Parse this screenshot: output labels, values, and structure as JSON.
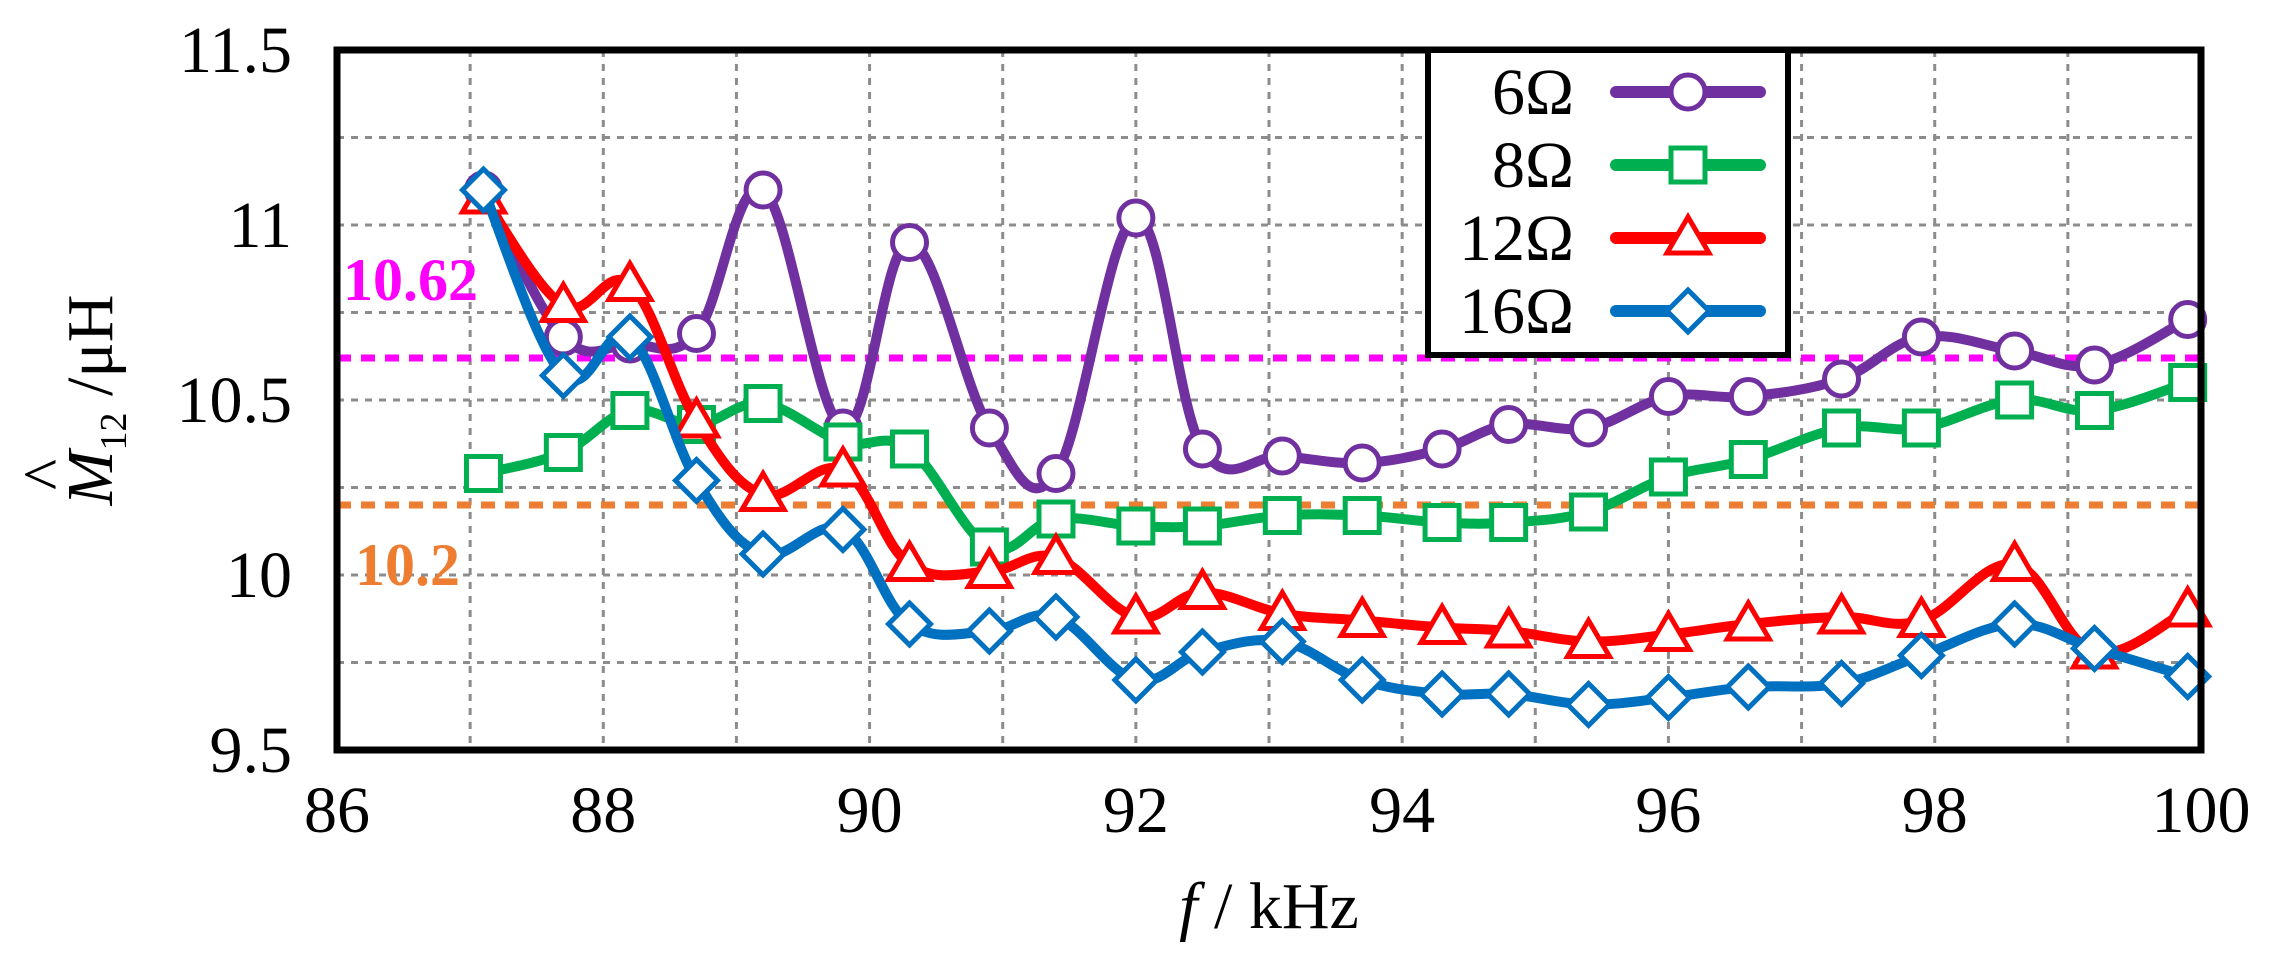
{
  "chart_data": {
    "type": "line",
    "title": "",
    "xlabel": {
      "italic": "f",
      "rest": " / kHz"
    },
    "ylabel": {
      "symbol": "M",
      "sub": "12",
      "unit": " /μH"
    },
    "xlim": [
      86,
      100
    ],
    "ylim": [
      9.5,
      11.5
    ],
    "xticks": [
      "86",
      "88",
      "90",
      "92",
      "94",
      "96",
      "98",
      "100"
    ],
    "yticks": [
      "9.5",
      "10",
      "10.5",
      "11",
      "11.5"
    ],
    "grid": true,
    "legend_position": "top-right",
    "x": [
      87.1,
      87.7,
      88.2,
      88.7,
      89.2,
      89.8,
      90.3,
      90.9,
      91.4,
      92.0,
      92.5,
      93.1,
      93.7,
      94.3,
      94.8,
      95.4,
      96.0,
      96.6,
      97.3,
      97.9,
      98.6,
      99.2,
      99.9
    ],
    "series": [
      {
        "name": "6Ω",
        "color": "#7030A0",
        "marker": "circle",
        "values": [
          11.1,
          10.68,
          10.66,
          10.69,
          11.1,
          10.42,
          10.95,
          10.42,
          10.29,
          11.02,
          10.36,
          10.34,
          10.32,
          10.36,
          10.43,
          10.42,
          10.51,
          10.51,
          10.56,
          10.68,
          10.64,
          10.6,
          10.73
        ]
      },
      {
        "name": "8Ω",
        "color": "#00B050",
        "marker": "square",
        "values": [
          10.29,
          10.35,
          10.47,
          10.43,
          10.49,
          10.38,
          10.36,
          10.08,
          10.16,
          10.14,
          10.14,
          10.17,
          10.17,
          10.15,
          10.15,
          10.18,
          10.28,
          10.33,
          10.42,
          10.42,
          10.5,
          10.47,
          10.55
        ]
      },
      {
        "name": "12Ω",
        "color": "#FF0000",
        "marker": "triangle",
        "values": [
          11.08,
          10.77,
          10.83,
          10.44,
          10.23,
          10.3,
          10.03,
          10.01,
          10.05,
          9.88,
          9.95,
          9.89,
          9.87,
          9.85,
          9.84,
          9.81,
          9.83,
          9.86,
          9.88,
          9.87,
          10.03,
          9.78,
          9.9
        ]
      },
      {
        "name": "16Ω",
        "color": "#0070C0",
        "marker": "diamond",
        "values": [
          11.1,
          10.57,
          10.68,
          10.27,
          10.06,
          10.13,
          9.86,
          9.84,
          9.88,
          9.7,
          9.78,
          9.81,
          9.7,
          9.66,
          9.66,
          9.63,
          9.65,
          9.68,
          9.69,
          9.77,
          9.86,
          9.79,
          9.71
        ]
      }
    ],
    "reference_lines": [
      {
        "value": 10.62,
        "label": "10.62",
        "color": "#FF00FF"
      },
      {
        "value": 10.2,
        "label": "10.2",
        "color": "#ED7D31"
      }
    ]
  }
}
